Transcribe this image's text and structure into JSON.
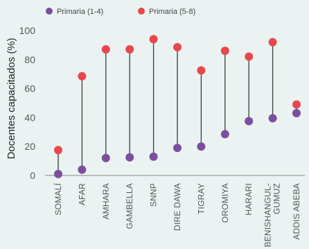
{
  "chart_data": {
    "type": "dumbbell",
    "ylabel": "Docentes capacitados (%)",
    "ylim": [
      0,
      100
    ],
    "yticks": [
      0,
      20,
      40,
      60,
      80,
      100
    ],
    "grid": false,
    "legend_position": "top",
    "categories": [
      [
        "SOMALÍ"
      ],
      [
        "AFAR"
      ],
      [
        "AMHARA"
      ],
      [
        "GAMBELLA"
      ],
      [
        "SNNP"
      ],
      [
        "DIRE DAWA"
      ],
      [
        "TIGRAY"
      ],
      [
        "OROMIYA"
      ],
      [
        "HARARI"
      ],
      [
        "BENISHANGUL-",
        "GUMUZ"
      ],
      [
        "ADDIS ABEBA"
      ]
    ],
    "series": [
      {
        "name": "Primaria (1-4)",
        "color": "#7b4fa0",
        "values": [
          1,
          4,
          12,
          12.5,
          13,
          19,
          20,
          28.5,
          37.5,
          39.5,
          43
        ]
      },
      {
        "name": "Primaria (5-8)",
        "color": "#e8474d",
        "values": [
          17.5,
          68.5,
          87,
          87,
          94,
          88.5,
          72.5,
          86,
          82,
          92,
          49
        ]
      }
    ]
  }
}
